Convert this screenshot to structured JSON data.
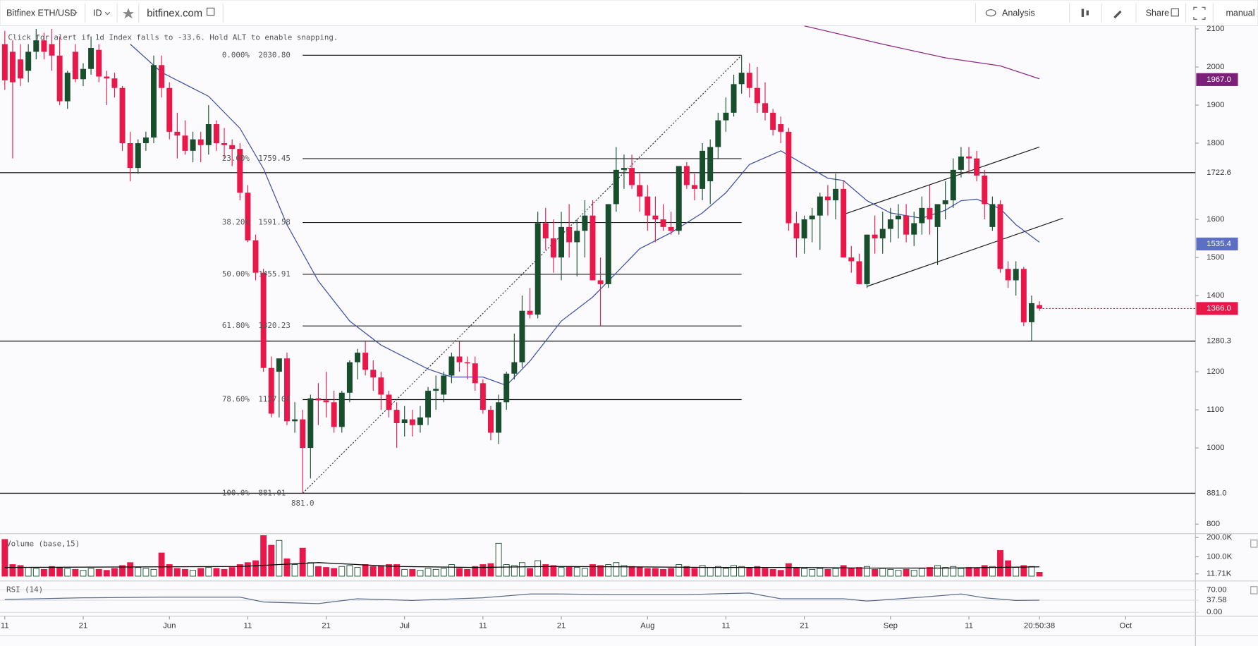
{
  "toolbar": {
    "symbol": "Bitfinex ETH/USD",
    "interval": "ID",
    "site": "bitfinex.com",
    "analysis": "Analysis",
    "share": "Share",
    "mode": "manual"
  },
  "hint": "Click for alert if 1d Index falls to -33.6. Hold ALT to enable snapping.",
  "chart_data": {
    "type": "candlestick",
    "up_color": "#184e2c",
    "down_color": "#e8194a",
    "xlim": [
      -0.614,
      151.9
    ],
    "ylim": [
      775,
      2108.4
    ],
    "xticks": [
      {
        "value": 0,
        "label": "11"
      },
      {
        "value": 10,
        "label": "21"
      },
      {
        "value": 21,
        "label": "Jun"
      },
      {
        "value": 31,
        "label": "11"
      },
      {
        "value": 41,
        "label": "21"
      },
      {
        "value": 51,
        "label": "Jul"
      },
      {
        "value": 61,
        "label": "11"
      },
      {
        "value": 71,
        "label": "21"
      },
      {
        "value": 82,
        "label": "Aug"
      },
      {
        "value": 92,
        "label": "11"
      },
      {
        "value": 102,
        "label": "21"
      },
      {
        "value": 113,
        "label": "Sep"
      },
      {
        "value": 123,
        "label": "11"
      },
      {
        "value": 132,
        "label": "20:50:38"
      },
      {
        "value": 143,
        "label": "Oct"
      }
    ],
    "yticks": [
      800,
      1000,
      1100,
      1200,
      1400,
      1500,
      1600,
      1800,
      1900,
      2000,
      2100
    ],
    "candles": [
      [
        2060,
        2095,
        1940,
        1965
      ],
      [
        2040,
        2070,
        1760,
        1960
      ],
      [
        2020,
        2060,
        1950,
        1970
      ],
      [
        1990,
        2060,
        1960,
        2040
      ],
      [
        2040,
        2100,
        2020,
        2070
      ],
      [
        2070,
        2090,
        2020,
        2040
      ],
      [
        2060,
        2100,
        1990,
        2030
      ],
      [
        2030,
        2080,
        1900,
        1910
      ],
      [
        1910,
        1990,
        1890,
        1985
      ],
      [
        2040,
        2060,
        1960,
        1968
      ],
      [
        1968,
        2010,
        1950,
        1995
      ],
      [
        1995,
        2080,
        1980,
        2050
      ],
      [
        2045,
        2060,
        1960,
        1975
      ],
      [
        1975,
        1990,
        1900,
        1970
      ],
      [
        1970,
        1985,
        1920,
        1945
      ],
      [
        1945,
        1950,
        1780,
        1800
      ],
      [
        1800,
        1830,
        1700,
        1735
      ],
      [
        1735,
        1810,
        1720,
        1800
      ],
      [
        1800,
        1830,
        1780,
        1815
      ],
      [
        1815,
        2030,
        1800,
        2005
      ],
      [
        2005,
        2030,
        1920,
        1945
      ],
      [
        1945,
        1960,
        1810,
        1830
      ],
      [
        1830,
        1880,
        1760,
        1820
      ],
      [
        1820,
        1860,
        1770,
        1780
      ],
      [
        1780,
        1830,
        1750,
        1810
      ],
      [
        1810,
        1830,
        1750,
        1795
      ],
      [
        1795,
        1900,
        1770,
        1850
      ],
      [
        1850,
        1860,
        1780,
        1800
      ],
      [
        1800,
        1840,
        1760,
        1795
      ],
      [
        1795,
        1810,
        1740,
        1785
      ],
      [
        1785,
        1800,
        1650,
        1670
      ],
      [
        1670,
        1690,
        1540,
        1545
      ],
      [
        1545,
        1560,
        1440,
        1460
      ],
      [
        1460,
        1470,
        1200,
        1210
      ],
      [
        1210,
        1240,
        1080,
        1090
      ],
      [
        1200,
        1230,
        1080,
        1235
      ],
      [
        1235,
        1250,
        1060,
        1070
      ],
      [
        1070,
        1120,
        1040,
        1075
      ],
      [
        1075,
        1100,
        881,
        1000
      ],
      [
        1000,
        1140,
        920,
        1130
      ],
      [
        1130,
        1170,
        1060,
        1125
      ],
      [
        1125,
        1200,
        1080,
        1120
      ],
      [
        1120,
        1150,
        1040,
        1055
      ],
      [
        1055,
        1150,
        1040,
        1145
      ],
      [
        1145,
        1230,
        1120,
        1225
      ],
      [
        1225,
        1260,
        1180,
        1250
      ],
      [
        1250,
        1280,
        1190,
        1205
      ],
      [
        1205,
        1230,
        1150,
        1185
      ],
      [
        1185,
        1200,
        1100,
        1140
      ],
      [
        1140,
        1150,
        1080,
        1100
      ],
      [
        1100,
        1120,
        1000,
        1065
      ],
      [
        1065,
        1110,
        1030,
        1075
      ],
      [
        1075,
        1100,
        1030,
        1060
      ],
      [
        1060,
        1110,
        1040,
        1080
      ],
      [
        1080,
        1160,
        1060,
        1150
      ],
      [
        1150,
        1190,
        1100,
        1155
      ],
      [
        1140,
        1200,
        1120,
        1190
      ],
      [
        1190,
        1250,
        1170,
        1240
      ],
      [
        1240,
        1280,
        1200,
        1225
      ],
      [
        1225,
        1240,
        1180,
        1222
      ],
      [
        1222,
        1240,
        1150,
        1170
      ],
      [
        1170,
        1180,
        1090,
        1100
      ],
      [
        1100,
        1110,
        1020,
        1040
      ],
      [
        1040,
        1140,
        1010,
        1120
      ],
      [
        1120,
        1200,
        1100,
        1195
      ],
      [
        1195,
        1300,
        1180,
        1225
      ],
      [
        1225,
        1400,
        1210,
        1360
      ],
      [
        1360,
        1420,
        1340,
        1350
      ],
      [
        1350,
        1620,
        1340,
        1590
      ],
      [
        1590,
        1630,
        1520,
        1550
      ],
      [
        1550,
        1600,
        1460,
        1500
      ],
      [
        1500,
        1620,
        1440,
        1580
      ],
      [
        1580,
        1640,
        1500,
        1540
      ],
      [
        1540,
        1600,
        1450,
        1570
      ],
      [
        1570,
        1650,
        1500,
        1610
      ],
      [
        1610,
        1650,
        1450,
        1440
      ],
      [
        1440,
        1500,
        1320,
        1430
      ],
      [
        1430,
        1640,
        1420,
        1640
      ],
      [
        1640,
        1790,
        1620,
        1730
      ],
      [
        1730,
        1770,
        1680,
        1735
      ],
      [
        1735,
        1770,
        1680,
        1690
      ],
      [
        1690,
        1720,
        1620,
        1660
      ],
      [
        1660,
        1690,
        1570,
        1610
      ],
      [
        1610,
        1660,
        1540,
        1600
      ],
      [
        1600,
        1640,
        1570,
        1580
      ],
      [
        1580,
        1620,
        1560,
        1570
      ],
      [
        1570,
        1740,
        1560,
        1740
      ],
      [
        1740,
        1750,
        1680,
        1690
      ],
      [
        1690,
        1720,
        1650,
        1680
      ],
      [
        1680,
        1800,
        1650,
        1780
      ],
      [
        1700,
        1810,
        1640,
        1790
      ],
      [
        1790,
        1880,
        1760,
        1860
      ],
      [
        1860,
        1920,
        1830,
        1880
      ],
      [
        1880,
        1980,
        1870,
        1955
      ],
      [
        1955,
        2030,
        1930,
        1985
      ],
      [
        1985,
        2010,
        1920,
        1945
      ],
      [
        1945,
        2000,
        1880,
        1905
      ],
      [
        1905,
        1960,
        1860,
        1880
      ],
      [
        1880,
        1890,
        1820,
        1835
      ],
      [
        1850,
        1870,
        1800,
        1830
      ],
      [
        1830,
        1840,
        1570,
        1590
      ],
      [
        1590,
        1620,
        1500,
        1550
      ],
      [
        1550,
        1610,
        1510,
        1600
      ],
      [
        1600,
        1630,
        1540,
        1610
      ],
      [
        1610,
        1670,
        1520,
        1660
      ],
      [
        1660,
        1690,
        1610,
        1650
      ],
      [
        1650,
        1720,
        1600,
        1680
      ],
      [
        1680,
        1700,
        1500,
        1500
      ],
      [
        1500,
        1530,
        1460,
        1490
      ],
      [
        1490,
        1510,
        1430,
        1430
      ],
      [
        1430,
        1560,
        1420,
        1560
      ],
      [
        1560,
        1610,
        1510,
        1550
      ],
      [
        1550,
        1620,
        1510,
        1575
      ],
      [
        1575,
        1630,
        1540,
        1600
      ],
      [
        1600,
        1640,
        1550,
        1610
      ],
      [
        1610,
        1640,
        1540,
        1560
      ],
      [
        1560,
        1620,
        1530,
        1590
      ],
      [
        1590,
        1660,
        1560,
        1630
      ],
      [
        1630,
        1690,
        1560,
        1600
      ],
      [
        1580,
        1640,
        1480,
        1640
      ],
      [
        1640,
        1700,
        1600,
        1650
      ],
      [
        1650,
        1760,
        1630,
        1730
      ],
      [
        1730,
        1790,
        1710,
        1765
      ],
      [
        1765,
        1790,
        1720,
        1760
      ],
      [
        1760,
        1780,
        1700,
        1715
      ],
      [
        1715,
        1730,
        1600,
        1640
      ],
      [
        1580,
        1660,
        1570,
        1640
      ],
      [
        1640,
        1650,
        1460,
        1470
      ],
      [
        1470,
        1490,
        1420,
        1440
      ],
      [
        1440,
        1490,
        1400,
        1470
      ],
      [
        1470,
        1475,
        1320,
        1330
      ],
      [
        1330,
        1400,
        1280,
        1380
      ],
      [
        1375,
        1385,
        1360,
        1366
      ]
    ],
    "lines": [
      {
        "color": "#3f51a8",
        "x": [
          16,
          20,
          26,
          30,
          33,
          36,
          40,
          44,
          48,
          54,
          57,
          61,
          64,
          67,
          71,
          75,
          77,
          81,
          85,
          89,
          92,
          95,
          99,
          102,
          105,
          107,
          110,
          113,
          117,
          120,
          122,
          124,
          127,
          129,
          132
        ],
        "values": [
          2060,
          1986,
          1923,
          1839,
          1733,
          1586,
          1438,
          1333,
          1270,
          1207,
          1186,
          1186,
          1164,
          1228,
          1333,
          1396,
          1438,
          1523,
          1565,
          1617,
          1670,
          1744,
          1780,
          1744,
          1708,
          1702,
          1649,
          1617,
          1603,
          1624,
          1649,
          1653,
          1628,
          1586,
          1540
        ]
      },
      {
        "color": "#8e2a82",
        "x": [
          102,
          112,
          120,
          127,
          132
        ],
        "values": [
          2108,
          2060,
          2024,
          2003,
          1969
        ]
      }
    ],
    "price_tags": [
      {
        "value": 1967.0,
        "label": "1967.0",
        "color": "#7b1f78"
      },
      {
        "value": 1535.4,
        "label": "1535.4",
        "color": "#5c6fc4"
      }
    ],
    "last_price": {
      "value": 1366.0,
      "label": "1366.0",
      "color": "#e8194a"
    },
    "levels": [
      {
        "value": 1722.6,
        "label": "1722.6"
      },
      {
        "value": 1280.3,
        "label": "1280.3"
      },
      {
        "value": 881.0,
        "label": "881.0"
      }
    ],
    "fib": {
      "start": 38,
      "end": 94,
      "levels": [
        {
          "pct": "0.000%",
          "price": {
            "value": 2030.8,
            "label": "2030.80"
          }
        },
        {
          "pct": "23.60%",
          "price": {
            "value": 1759.45,
            "label": "1759.45"
          }
        },
        {
          "pct": "38.20%",
          "price": {
            "value": 1591.58,
            "label": "1591.58"
          }
        },
        {
          "pct": "50.00%",
          "price": {
            "value": 1455.91,
            "label": "1455.91"
          }
        },
        {
          "pct": "61.80%",
          "price": {
            "value": 1320.23,
            "label": "1320.23"
          }
        },
        {
          "pct": "78.60%",
          "price": {
            "value": 1127.07,
            "label": "1127.07"
          }
        },
        {
          "pct": "100.0%",
          "price": {
            "value": 881.01,
            "label": "881.01"
          }
        }
      ]
    },
    "trend_lines": [
      [
        [
          107,
          1613
        ],
        [
          132,
          1790
        ]
      ],
      [
        [
          110,
          1424
        ],
        [
          135,
          1603
        ]
      ]
    ],
    "volume": {
      "label": "Volume (base,15)",
      "ylim": [
        0,
        220000
      ],
      "yticks": [
        {
          "value": 11710,
          "label": "11.71K"
        },
        {
          "value": 100000,
          "label": "100.0K"
        },
        {
          "value": 200000,
          "label": "200.0K"
        }
      ],
      "values": [
        190000,
        60000,
        55000,
        45000,
        40000,
        35000,
        50000,
        45000,
        40000,
        35000,
        30000,
        40000,
        35000,
        30000,
        40000,
        55000,
        70000,
        45000,
        40000,
        35000,
        120000,
        60000,
        40000,
        35000,
        30000,
        40000,
        45000,
        40000,
        35000,
        45000,
        60000,
        70000,
        80000,
        210000,
        160000,
        185000,
        90000,
        60000,
        145000,
        70000,
        50000,
        45000,
        40000,
        50000,
        55000,
        45000,
        60000,
        50000,
        55000,
        60000,
        60000,
        35000,
        35000,
        30000,
        40000,
        35000,
        40000,
        60000,
        40000,
        35000,
        50000,
        60000,
        65000,
        170000,
        60000,
        55000,
        70000,
        40000,
        80000,
        60000,
        55000,
        45000,
        50000,
        45000,
        40000,
        60000,
        55000,
        60000,
        70000,
        55000,
        50000,
        45000,
        40000,
        40000,
        35000,
        40000,
        60000,
        50000,
        40000,
        55000,
        45000,
        50000,
        40000,
        55000,
        50000,
        45000,
        50000,
        40000,
        35000,
        30000,
        65000,
        45000,
        40000,
        35000,
        40000,
        35000,
        40000,
        55000,
        40000,
        45000,
        50000,
        35000,
        40000,
        35000,
        30000,
        35000,
        30000,
        40000,
        45000,
        55000,
        45000,
        50000,
        40000,
        45000,
        40000,
        55000,
        50000,
        133000,
        80000,
        45000,
        55000,
        50000,
        20000
      ],
      "ma": {
        "color": "#000000",
        "x": [
          0,
          30,
          40,
          50,
          60,
          70,
          80,
          90,
          100,
          110,
          120,
          132
        ],
        "values": [
          45000,
          50000,
          70000,
          50000,
          45000,
          50000,
          48000,
          45000,
          45000,
          42000,
          42000,
          48000
        ]
      }
    },
    "rsi": {
      "label": "RSI (14)",
      "ylim": [
        -12.5,
        90
      ],
      "yticks": [
        {
          "value": 0,
          "label": "0.00"
        },
        37.58,
        {
          "value": 70,
          "label": "70.00"
        }
      ],
      "line": {
        "color": "#5b6b8c",
        "x": [
          0,
          10,
          20,
          30,
          33,
          40,
          45,
          52,
          61,
          67,
          71,
          77,
          87,
          95,
          99,
          107,
          110,
          117,
          122,
          125,
          129,
          132
        ],
        "values": [
          40,
          45,
          47,
          47,
          32,
          27,
          42,
          37,
          45,
          57,
          57,
          55,
          55,
          60,
          42,
          42,
          35,
          47,
          57,
          45,
          37,
          37.58
        ]
      }
    }
  }
}
